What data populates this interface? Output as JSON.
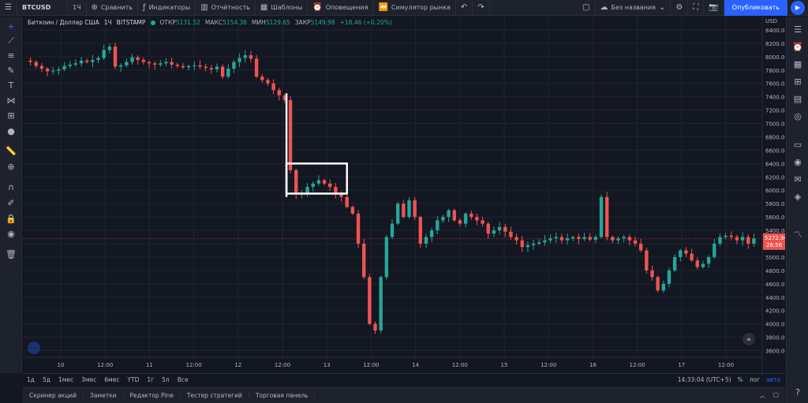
{
  "topbar": {
    "symbol": "BTCUSD",
    "interval": "1Ч",
    "compare": "Сравнить",
    "indicators": "Индикаторы",
    "financials": "Отчётность",
    "templates": "Шаблоны",
    "alerts": "Оповещения",
    "replay": "Симулятор рынка",
    "layout_name": "Без названия",
    "publish": "Опубликовать"
  },
  "legend": {
    "title": "Биткоин / Доллар США",
    "interval": "1Ч",
    "exchange": "BITSTAMP",
    "open_label": "ОТКР",
    "open": "5131.52",
    "high_label": "МАКС",
    "high": "5154.36",
    "low_label": "МИН",
    "low": "5129.65",
    "close_label": "ЗАКР",
    "close": "5149.98",
    "change": "+18.46 (+0.20%)"
  },
  "price_axis": {
    "currency": "USD",
    "current_price": "5272.94",
    "countdown": "26:56"
  },
  "time_axis": {
    "clock": "14:33:04 (UTC+5)"
  },
  "range_buttons": [
    "1д",
    "5д",
    "1мес",
    "3мес",
    "6мес",
    "YTD",
    "1г",
    "5л",
    "Все"
  ],
  "scale_buttons": {
    "percent": "%",
    "log": "лог",
    "auto": "авто"
  },
  "bottom_tabs": [
    "Скринер акций",
    "Заметки",
    "Редактор Pine",
    "Тестер стратегий",
    "Торговая панель"
  ],
  "colors": {
    "up": "#26a69a",
    "down": "#ef5350",
    "background": "#131722",
    "grid": "#1f2430",
    "highlight": "#ffffff"
  },
  "icons": {
    "left_toolbar": [
      "crosshair-icon",
      "trend-line-icon",
      "fib-icon",
      "brush-icon",
      "text-icon",
      "pattern-icon",
      "measure-icon",
      "shapes-icon",
      "ruler-icon",
      "zoom-icon",
      "magnet-icon",
      "lock-drawings-icon",
      "lock-icon",
      "eye-icon",
      "trash-icon"
    ],
    "right_toolbar": [
      "watchlist-icon",
      "alerts-icon",
      "data-window-icon",
      "hotlist-icon",
      "calendar-icon",
      "ideas-icon",
      "chat-icon",
      "streams-icon",
      "notification-icon",
      "layers-icon",
      "help-icon"
    ]
  },
  "chart_data": {
    "type": "candlestick",
    "symbol": "BTCUSD",
    "interval": "1H",
    "ylim": [
      3500,
      8600
    ],
    "y_ticks": [
      8400,
      8200,
      8000,
      7800,
      7600,
      7400,
      7200,
      7000,
      6800,
      6600,
      6400,
      6200,
      6000,
      5800,
      5600,
      5400,
      5200,
      5000,
      4800,
      4600,
      4400,
      4200,
      4000,
      3800,
      3600
    ],
    "x_ticks": [
      "10",
      "12:00",
      "11",
      "12:00",
      "12",
      "12:00",
      "13",
      "12:00",
      "14",
      "12:00",
      "15",
      "12:00",
      "16",
      "12:00",
      "17",
      "12:00"
    ],
    "close_path": [
      7920,
      7860,
      7820,
      7780,
      7790,
      7810,
      7860,
      7880,
      7900,
      7940,
      7920,
      7950,
      7980,
      8100,
      8150,
      7850,
      7870,
      7920,
      7990,
      7950,
      7920,
      7900,
      7880,
      7900,
      7920,
      7880,
      7860,
      7840,
      7860,
      7870,
      7850,
      7830,
      7810,
      7850,
      7700,
      7820,
      7920,
      7980,
      8020,
      7970,
      7700,
      7650,
      7600,
      7500,
      7420,
      7350,
      6300,
      5950,
      5950,
      6050,
      6100,
      6150,
      6100,
      6050,
      5950,
      5900,
      5750,
      5650,
      5200,
      4700,
      4000,
      3900,
      4700,
      5300,
      5500,
      5800,
      5600,
      5850,
      5600,
      5200,
      5300,
      5400,
      5550,
      5600,
      5700,
      5550,
      5500,
      5650,
      5600,
      5550,
      5500,
      5350,
      5400,
      5450,
      5380,
      5300,
      5250,
      5150,
      5180,
      5200,
      5220,
      5250,
      5280,
      5300,
      5250,
      5280,
      5300,
      5270,
      5300,
      5260,
      5300,
      5900,
      5300,
      5250,
      5280,
      5300,
      5250,
      5200,
      5100,
      4800,
      4700,
      4500,
      4600,
      4800,
      5000,
      5100,
      5050,
      4950,
      4850,
      4900,
      5000,
      5200,
      5300,
      5320,
      5300,
      5250,
      5300,
      5200,
      5280
    ],
    "annotations": [
      {
        "type": "vertical-line",
        "x_index": 46,
        "from": 7450,
        "to": 5900
      },
      {
        "type": "rectangle",
        "x_from": 46,
        "x_to": 56,
        "from": 6400,
        "to": 5950
      }
    ]
  }
}
